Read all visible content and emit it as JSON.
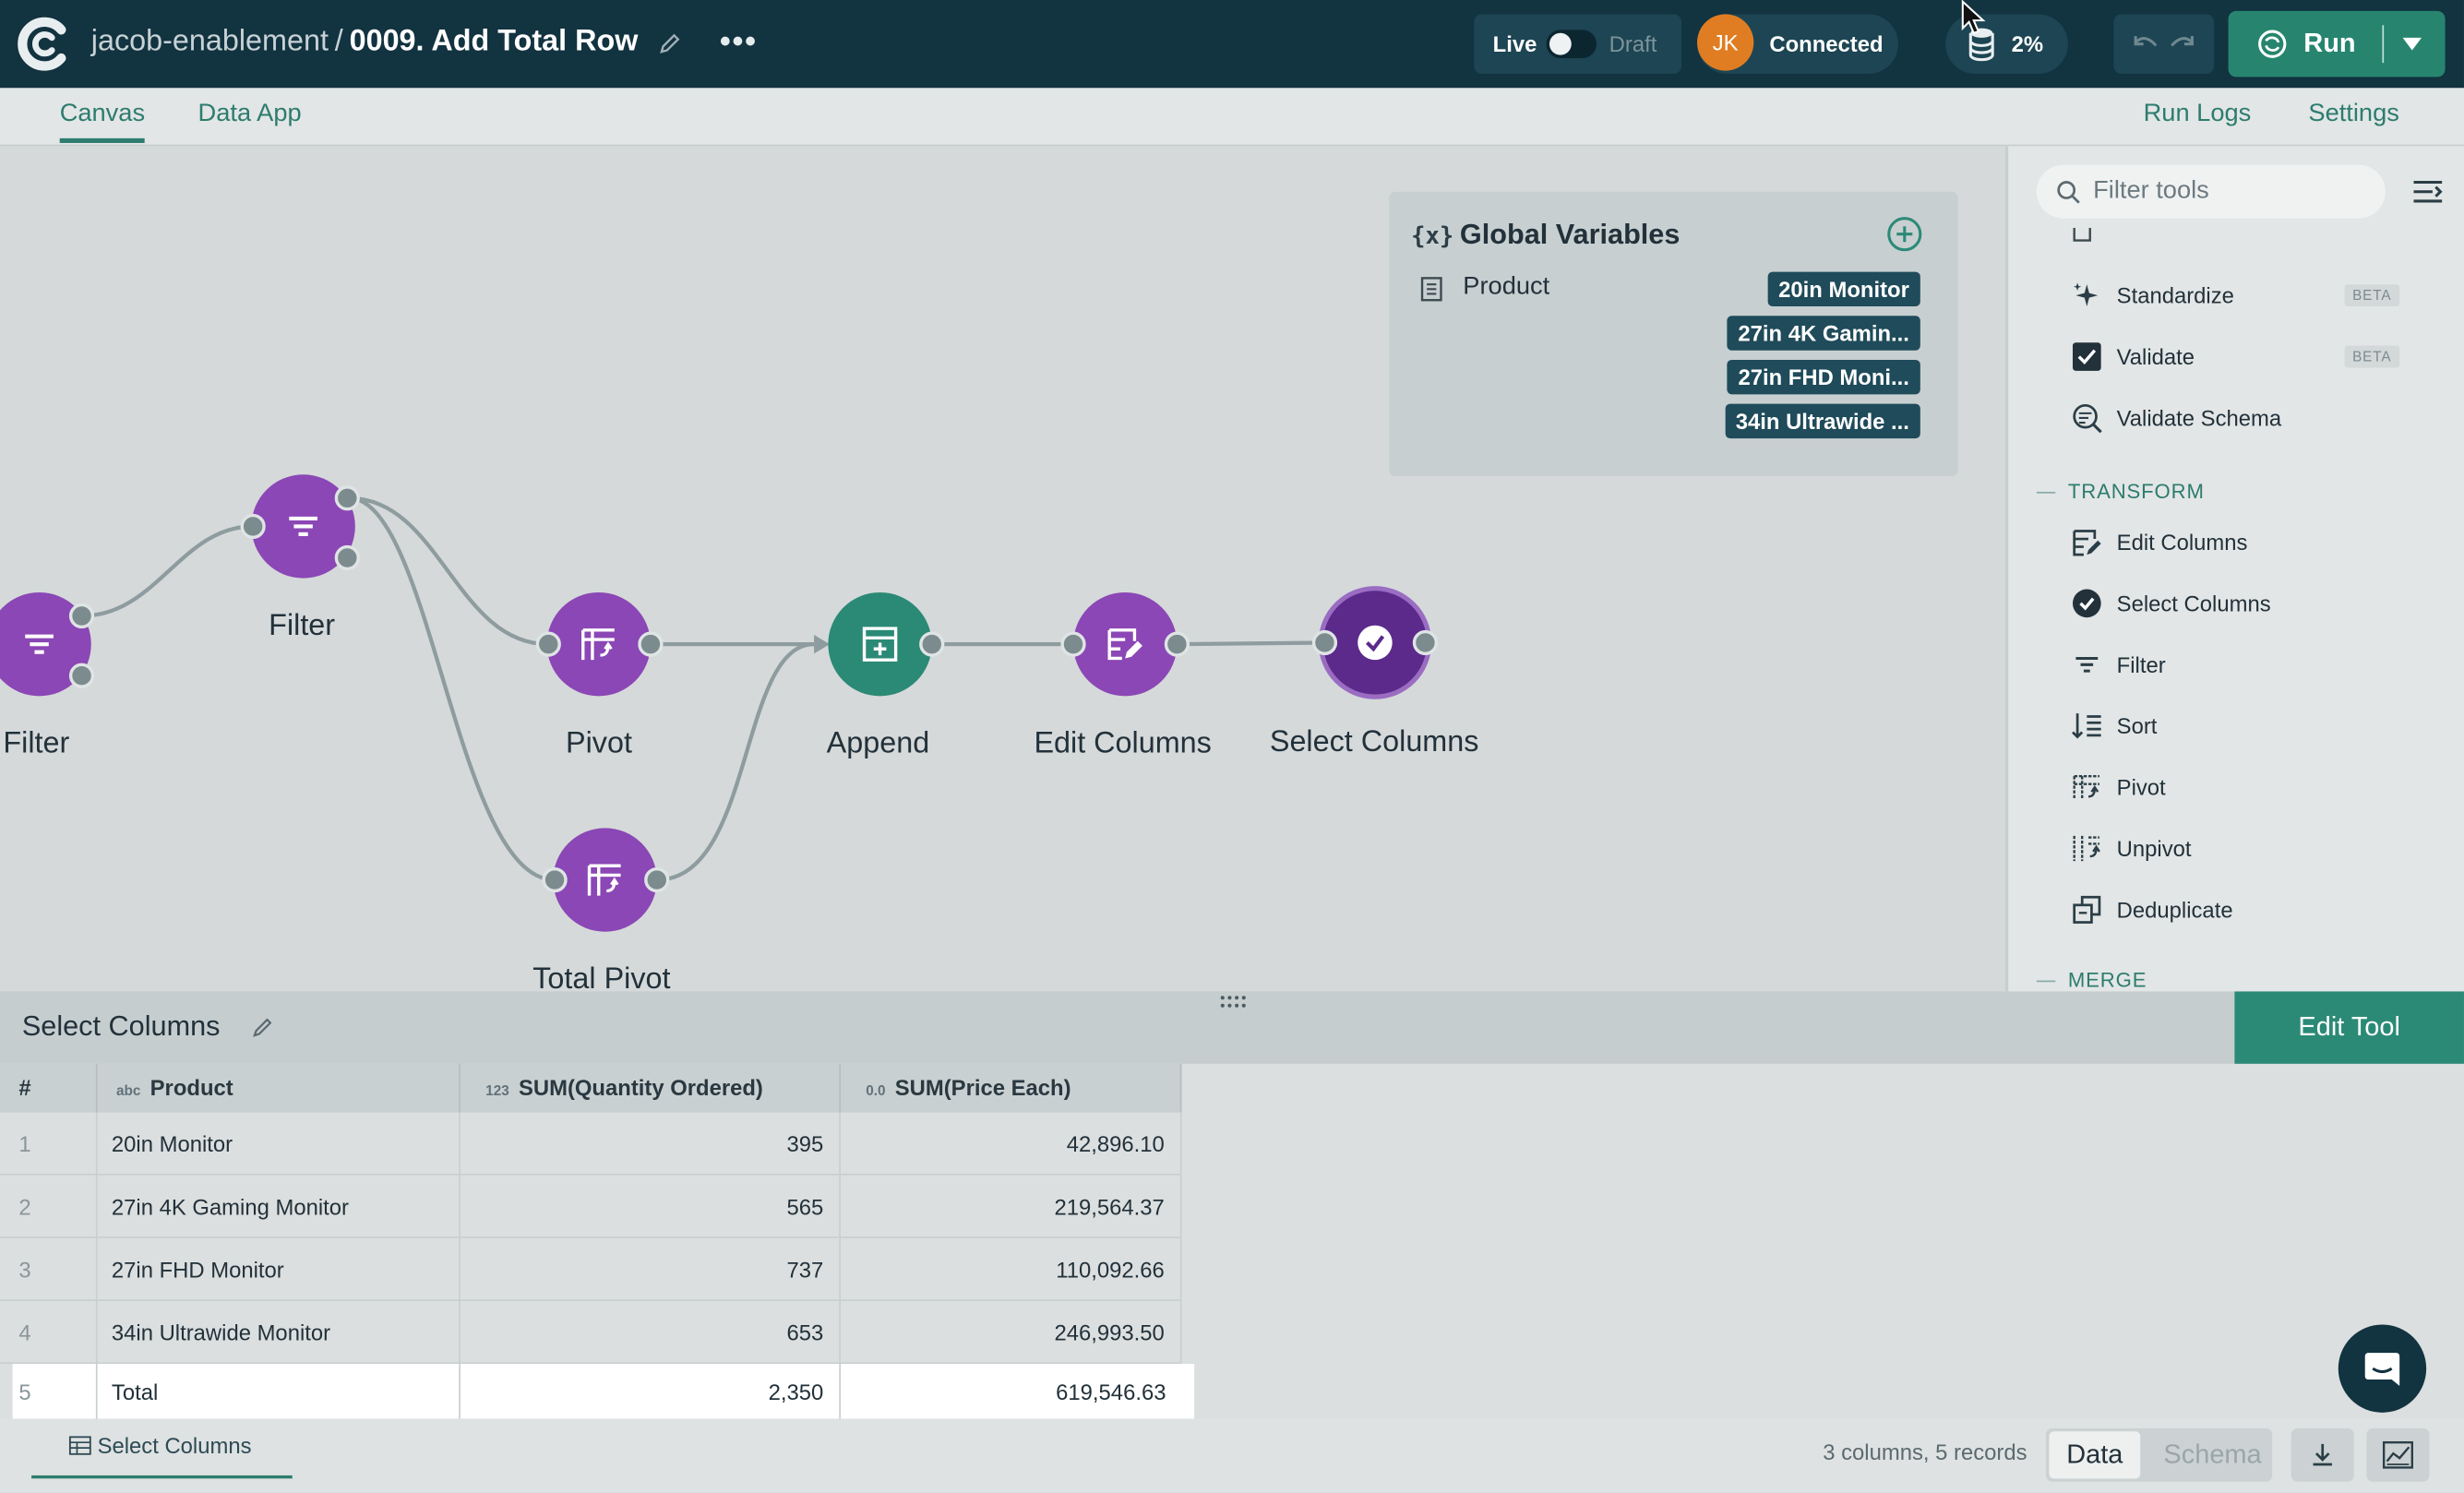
{
  "topbar": {
    "workspace": "jacob-enablement",
    "separator": "/",
    "flow_name": "0009. Add Total Row",
    "more_label": "•••",
    "live_label": "Live",
    "draft_label": "Draft",
    "avatar_initials": "JK",
    "connection_status": "Connected",
    "storage_usage": "2%",
    "run_label": "Run"
  },
  "tabs": {
    "canvas": "Canvas",
    "data_app": "Data App",
    "run_logs": "Run Logs",
    "settings": "Settings"
  },
  "canvas": {
    "nodes": [
      {
        "id": "filter-1",
        "label": "Filter",
        "icon": "filter-icon",
        "color": "#8b47b5"
      },
      {
        "id": "filter-2",
        "label": "Filter",
        "icon": "filter-icon",
        "color": "#8b47b5"
      },
      {
        "id": "pivot",
        "label": "Pivot",
        "icon": "pivot-icon",
        "color": "#8b47b5"
      },
      {
        "id": "total-pivot",
        "label": "Total Pivot",
        "icon": "pivot-icon",
        "color": "#8b47b5"
      },
      {
        "id": "append",
        "label": "Append",
        "icon": "append-icon",
        "color": "#2b8a76"
      },
      {
        "id": "edit-columns",
        "label": "Edit Columns",
        "icon": "edit-columns-icon",
        "color": "#8b47b5"
      },
      {
        "id": "select-columns",
        "label": "Select Columns",
        "icon": "check-icon",
        "color": "#5b2a8a"
      }
    ],
    "global_variables": {
      "icon_text": "{x}",
      "title": "Global Variables",
      "variable_name": "Product",
      "values": [
        "20in Monitor",
        "27in 4K Gamin...",
        "27in FHD Moni...",
        "34in Ultrawide ..."
      ]
    }
  },
  "tools_panel": {
    "search_placeholder": "Filter tools",
    "items_top": [
      {
        "label": "Standardize",
        "badge": "BETA",
        "icon": "sparkle-icon"
      },
      {
        "label": "Validate",
        "badge": "BETA",
        "icon": "checkbox-icon"
      },
      {
        "label": "Validate Schema",
        "badge": "",
        "icon": "search-check-icon"
      }
    ],
    "section_transform": "TRANSFORM",
    "transform_items": [
      {
        "label": "Edit Columns",
        "icon": "edit-columns-icon"
      },
      {
        "label": "Select Columns",
        "icon": "check-circle-icon"
      },
      {
        "label": "Filter",
        "icon": "filter-icon"
      },
      {
        "label": "Sort",
        "icon": "sort-icon"
      },
      {
        "label": "Pivot",
        "icon": "pivot-icon"
      },
      {
        "label": "Unpivot",
        "icon": "unpivot-icon"
      },
      {
        "label": "Deduplicate",
        "icon": "deduplicate-icon"
      }
    ],
    "section_merge": "MERGE"
  },
  "bottom_panel": {
    "title": "Select Columns",
    "edit_tool_label": "Edit Tool",
    "columns": [
      {
        "label": "#",
        "type": ""
      },
      {
        "label": "Product",
        "type": "abc"
      },
      {
        "label": "SUM(Quantity Ordered)",
        "type": "123"
      },
      {
        "label": "SUM(Price Each)",
        "type": "0.0"
      }
    ],
    "rows": [
      [
        "1",
        "20in Monitor",
        "395",
        "42,896.10"
      ],
      [
        "2",
        "27in 4K Gaming Monitor",
        "565",
        "219,564.37"
      ],
      [
        "3",
        "27in FHD Monitor",
        "737",
        "110,092.66"
      ],
      [
        "4",
        "34in Ultrawide Monitor",
        "653",
        "246,993.50"
      ],
      [
        "5",
        "Total",
        "2,350",
        "619,546.63"
      ]
    ],
    "footer_tab": "Select Columns",
    "record_count": "3 columns, 5 records",
    "data_label": "Data",
    "schema_label": "Schema"
  },
  "colors": {
    "topbar": "#123340",
    "accent": "#2b8a76",
    "node_purple": "#8b47b5",
    "node_selected": "#5b2a8a"
  }
}
